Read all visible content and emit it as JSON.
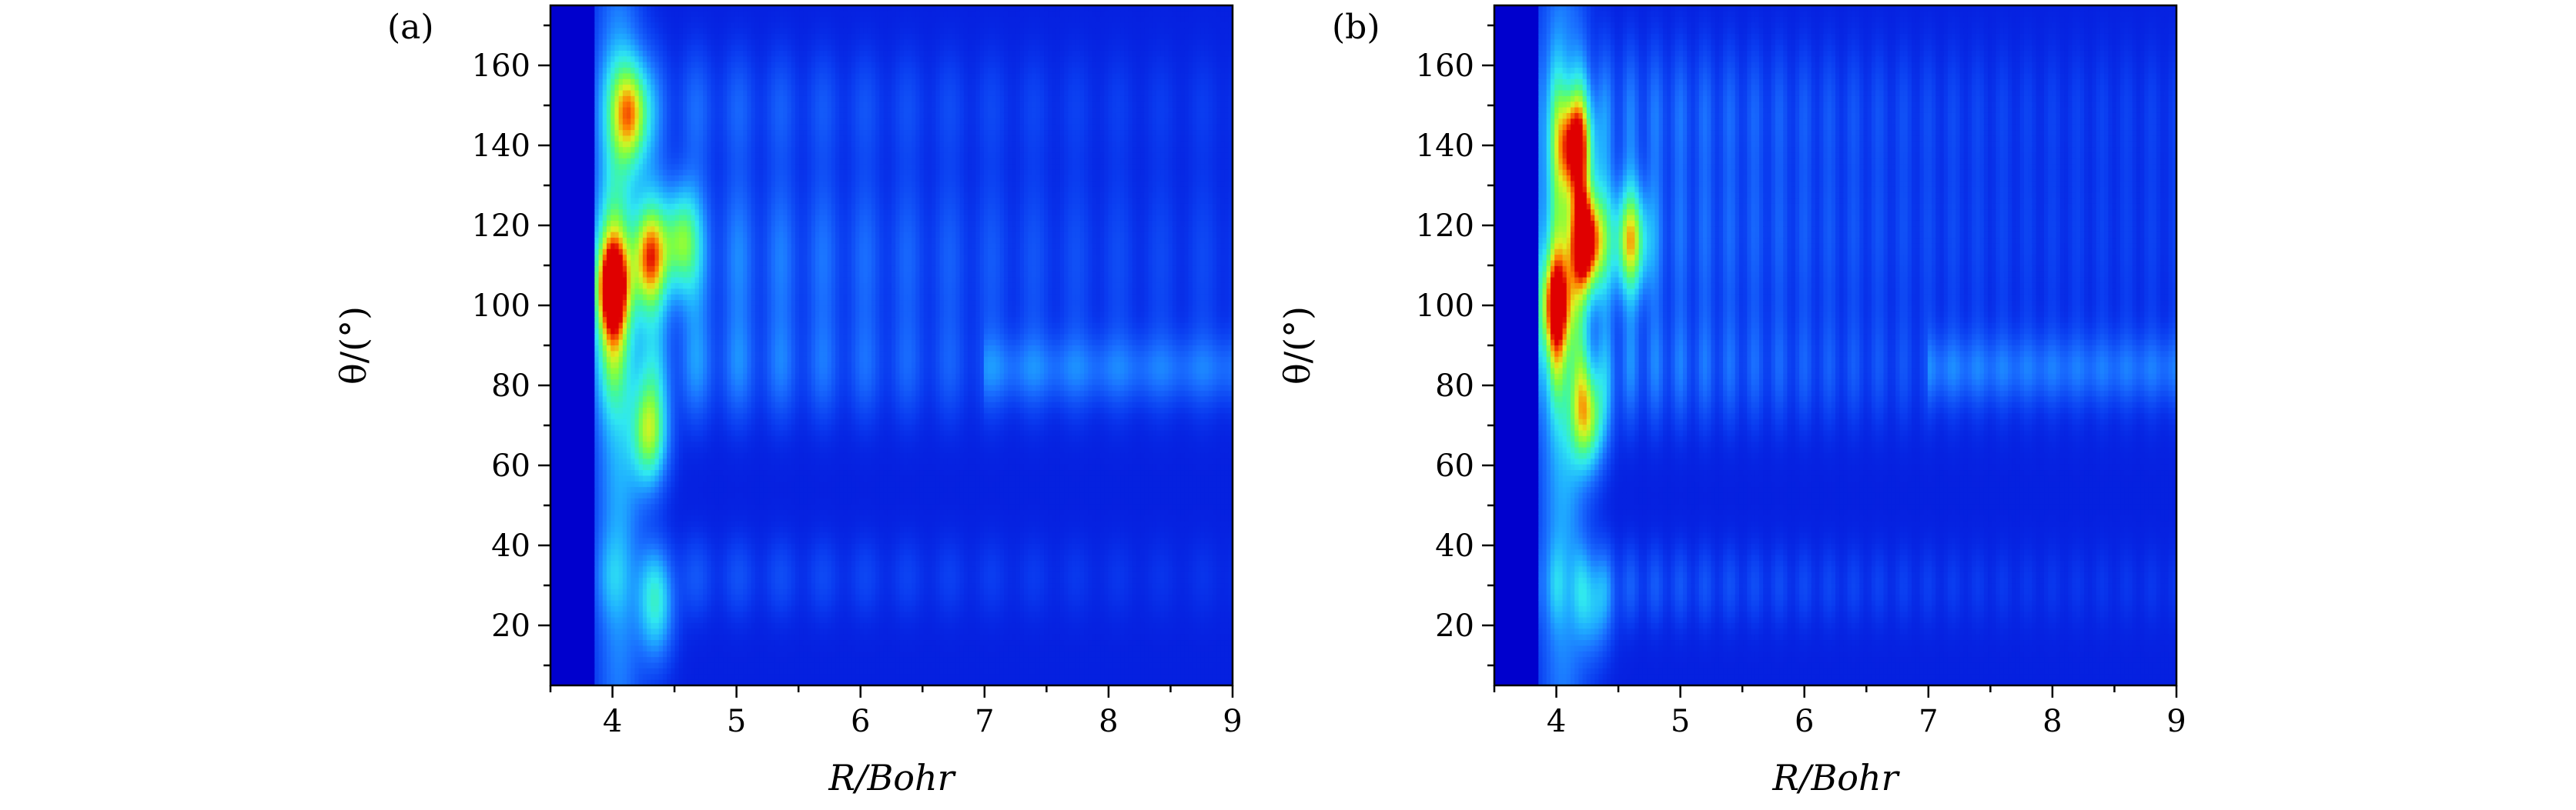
{
  "chart_data": [
    {
      "type": "heatmap",
      "panel_label": "(a)",
      "xlabel": "R/Bohr",
      "ylabel": "θ/(°)",
      "xlim": [
        3.5,
        9.0
      ],
      "ylim": [
        5,
        175
      ],
      "xticks": [
        4,
        5,
        6,
        7,
        8,
        9
      ],
      "yticks": [
        20,
        40,
        60,
        80,
        100,
        120,
        140,
        160
      ],
      "colormap": [
        "#0000cd",
        "#0a3cf0",
        "#1a70ff",
        "#20b0ff",
        "#30e8f0",
        "#40f8a0",
        "#80ff40",
        "#e0f020",
        "#ff8000",
        "#e00000"
      ],
      "peaks": [
        {
          "R": 4.0,
          "theta": 104,
          "amp": 0.78
        },
        {
          "R": 4.15,
          "theta": 148,
          "amp": 0.62
        },
        {
          "R": 4.3,
          "theta": 112,
          "amp": 0.62
        },
        {
          "R": 4.3,
          "theta": 68,
          "amp": 0.6
        },
        {
          "R": 4.55,
          "theta": 116,
          "amp": 0.5
        },
        {
          "R": 4.35,
          "theta": 24,
          "amp": 0.35
        }
      ]
    },
    {
      "type": "heatmap",
      "panel_label": "(b)",
      "xlabel": "R/Bohr",
      "ylabel": "θ/(°)",
      "xlim": [
        3.5,
        9.0
      ],
      "ylim": [
        5,
        175
      ],
      "xticks": [
        4,
        5,
        6,
        7,
        8,
        9
      ],
      "yticks": [
        20,
        40,
        60,
        80,
        100,
        120,
        140,
        160
      ],
      "colormap": [
        "#0000cd",
        "#0a3cf0",
        "#1a70ff",
        "#20b0ff",
        "#30e8f0",
        "#40f8a0",
        "#80ff40",
        "#e0f020",
        "#ff8000",
        "#e00000"
      ],
      "peaks": [
        {
          "R": 4.25,
          "theta": 116,
          "amp": 0.95
        },
        {
          "R": 4.15,
          "theta": 140,
          "amp": 0.78
        },
        {
          "R": 4.0,
          "theta": 100,
          "amp": 0.7
        },
        {
          "R": 4.25,
          "theta": 72,
          "amp": 0.6
        },
        {
          "R": 4.6,
          "theta": 116,
          "amp": 0.6
        },
        {
          "R": 4.3,
          "theta": 25,
          "amp": 0.25
        }
      ]
    }
  ]
}
